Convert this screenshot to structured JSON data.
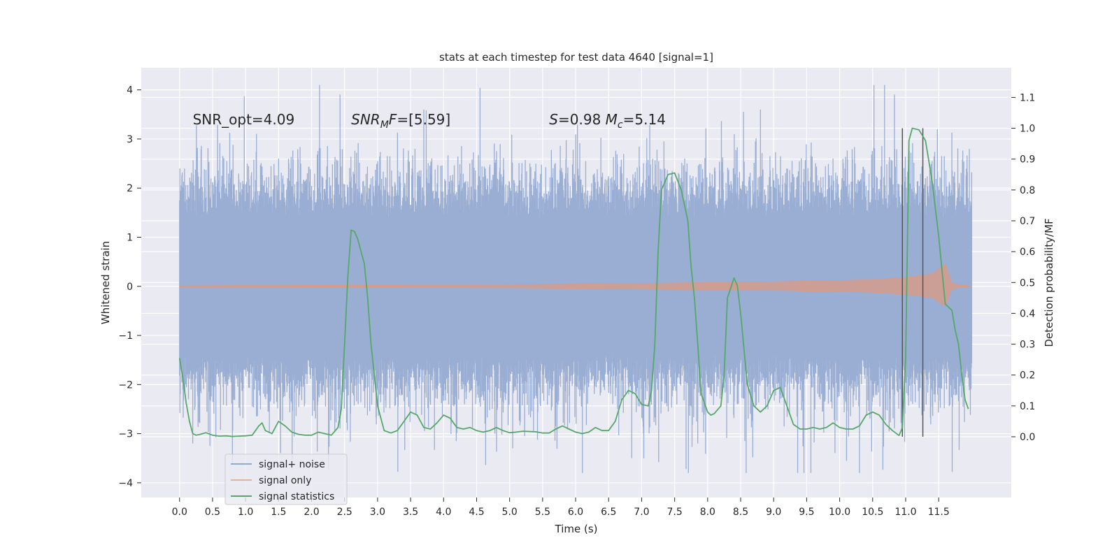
{
  "chart_data": {
    "type": "line",
    "title": "stats at each timestep for test data 4640 [signal=1]",
    "xlabel": "Time (s)",
    "ylabel_left": "Whitened strain",
    "ylabel_right": "Detection probability/MF",
    "xlim": [
      -0.58,
      12.6
    ],
    "ylim_left": [
      -4.3,
      4.45
    ],
    "ylim_right": [
      -0.197,
      1.196
    ],
    "x_ticks": [
      "0.0",
      "0.5",
      "1.0",
      "1.5",
      "2.0",
      "2.5",
      "3.0",
      "3.5",
      "4.0",
      "4.5",
      "5.0",
      "5.5",
      "6.0",
      "6.5",
      "7.0",
      "7.5",
      "8.0",
      "8.5",
      "9.0",
      "9.5",
      "10.0",
      "10.5",
      "11.0",
      "11.5"
    ],
    "y_ticks_left": [
      "−4",
      "−3",
      "−2",
      "−1",
      "0",
      "1",
      "2",
      "3",
      "4"
    ],
    "y_ticks_right": [
      "0.0",
      "0.1",
      "0.2",
      "0.3",
      "0.4",
      "0.5",
      "0.6",
      "0.7",
      "0.8",
      "0.9",
      "1.0",
      "1.1"
    ],
    "grid": true,
    "legend_placement": "lower-left",
    "annotations": [
      {
        "kind": "plain",
        "text": "SNR_opt=4.09",
        "x": 0.2,
        "y": 3.3
      },
      {
        "kind": "snr_mf",
        "italic": "SNR",
        "sub": "M",
        "italic2": "F",
        "rest": "=[5.59]",
        "x": 2.6,
        "y": 3.3
      },
      {
        "kind": "s_mc",
        "s": "S",
        "s_rest": "=0.98",
        "m": "M",
        "m_sub": "c",
        "m_rest": "=5.14",
        "x": 5.6,
        "y": 3.3
      }
    ],
    "vertical_markers": [
      10.95,
      11.26
    ],
    "series": [
      {
        "name": "signal+ noise",
        "color": "#4c72b0",
        "axis": "left",
        "t_range": [
          0.0,
          12.0
        ],
        "core_band": [
          -1.4,
          1.4
        ],
        "typical_envelope": [
          -2.1,
          2.1
        ],
        "extreme_min": -3.8,
        "extreme_max": 4.1
      },
      {
        "name": "signal only",
        "color": "#dd8452",
        "axis": "left",
        "t_range": [
          0.0,
          12.0
        ],
        "envelope": [
          [
            0.0,
            0.01
          ],
          [
            5.0,
            0.03
          ],
          [
            7.0,
            0.06
          ],
          [
            9.0,
            0.09
          ],
          [
            10.5,
            0.13
          ],
          [
            11.0,
            0.18
          ],
          [
            11.4,
            0.25
          ],
          [
            11.6,
            0.45
          ],
          [
            11.7,
            0.05
          ],
          [
            12.0,
            0.0
          ]
        ]
      },
      {
        "name": "signal statistics",
        "color": "#55a868",
        "axis": "right",
        "x": [
          0.0,
          0.05,
          0.1,
          0.15,
          0.2,
          0.25,
          0.3,
          0.4,
          0.5,
          0.6,
          0.7,
          0.8,
          0.9,
          1.0,
          1.1,
          1.2,
          1.25,
          1.3,
          1.4,
          1.5,
          1.6,
          1.7,
          1.8,
          1.9,
          2.0,
          2.1,
          2.2,
          2.3,
          2.4,
          2.45,
          2.5,
          2.55,
          2.6,
          2.65,
          2.7,
          2.8,
          2.85,
          2.9,
          3.0,
          3.1,
          3.2,
          3.3,
          3.4,
          3.5,
          3.6,
          3.7,
          3.8,
          3.9,
          4.0,
          4.1,
          4.2,
          4.3,
          4.4,
          4.5,
          4.6,
          4.7,
          4.8,
          4.9,
          5.0,
          5.1,
          5.2,
          5.3,
          5.4,
          5.5,
          5.6,
          5.7,
          5.8,
          5.9,
          6.0,
          6.1,
          6.2,
          6.3,
          6.4,
          6.5,
          6.6,
          6.7,
          6.8,
          6.9,
          7.0,
          7.1,
          7.15,
          7.2,
          7.25,
          7.3,
          7.4,
          7.5,
          7.6,
          7.7,
          7.75,
          7.8,
          7.85,
          7.9,
          8.0,
          8.05,
          8.1,
          8.2,
          8.25,
          8.3,
          8.4,
          8.45,
          8.5,
          8.6,
          8.7,
          8.8,
          8.9,
          9.0,
          9.1,
          9.2,
          9.3,
          9.4,
          9.5,
          9.6,
          9.7,
          9.8,
          9.9,
          10.0,
          10.1,
          10.2,
          10.3,
          10.4,
          10.5,
          10.6,
          10.7,
          10.8,
          10.9,
          10.95,
          11.0,
          11.05,
          11.1,
          11.2,
          11.3,
          11.4,
          11.5,
          11.6,
          11.7,
          11.75,
          11.8,
          11.85,
          11.9,
          11.95
        ],
        "values": [
          0.255,
          0.19,
          0.11,
          0.05,
          0.01,
          0.005,
          0.007,
          0.013,
          0.005,
          0.002,
          0.003,
          0.001,
          0.002,
          0.003,
          0.005,
          0.035,
          0.045,
          0.02,
          0.01,
          0.05,
          0.035,
          0.015,
          0.008,
          0.005,
          0.005,
          0.015,
          0.01,
          0.005,
          0.03,
          0.09,
          0.3,
          0.52,
          0.67,
          0.665,
          0.64,
          0.56,
          0.45,
          0.3,
          0.1,
          0.02,
          0.012,
          0.02,
          0.05,
          0.08,
          0.07,
          0.03,
          0.025,
          0.045,
          0.07,
          0.06,
          0.03,
          0.025,
          0.03,
          0.02,
          0.015,
          0.02,
          0.03,
          0.02,
          0.013,
          0.015,
          0.018,
          0.017,
          0.016,
          0.012,
          0.012,
          0.025,
          0.035,
          0.025,
          0.015,
          0.01,
          0.015,
          0.03,
          0.02,
          0.02,
          0.05,
          0.12,
          0.15,
          0.14,
          0.105,
          0.1,
          0.15,
          0.3,
          0.6,
          0.8,
          0.85,
          0.855,
          0.8,
          0.7,
          0.55,
          0.45,
          0.3,
          0.14,
          0.08,
          0.07,
          0.075,
          0.1,
          0.2,
          0.45,
          0.515,
          0.49,
          0.4,
          0.17,
          0.1,
          0.08,
          0.1,
          0.15,
          0.16,
          0.1,
          0.04,
          0.025,
          0.025,
          0.03,
          0.025,
          0.03,
          0.045,
          0.03,
          0.025,
          0.025,
          0.035,
          0.07,
          0.08,
          0.07,
          0.04,
          0.02,
          0.004,
          0.03,
          0.26,
          0.96,
          1.0,
          0.995,
          0.96,
          0.83,
          0.65,
          0.43,
          0.41,
          0.345,
          0.3,
          0.2,
          0.12,
          0.09
        ]
      }
    ]
  }
}
